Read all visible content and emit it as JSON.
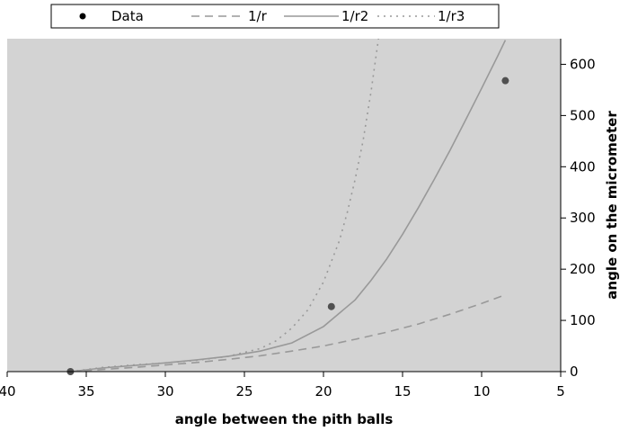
{
  "chart_data": {
    "type": "line",
    "xlabel": "angle between the pith balls",
    "ylabel": "angle on the micrometer",
    "xlim": [
      40,
      5
    ],
    "ylim": [
      0,
      650
    ],
    "x_reversed": true,
    "y_axis_side": "right",
    "x_ticks": [
      40,
      35,
      30,
      25,
      20,
      15,
      10,
      5
    ],
    "y_ticks": [
      0,
      100,
      200,
      300,
      400,
      500,
      600
    ],
    "grid": false,
    "plot_background": "#d3d3d3",
    "legend_position": "top",
    "scatter": {
      "name": "Data",
      "color": "#505050",
      "points": [
        {
          "x": 36,
          "y": 0
        },
        {
          "x": 19.5,
          "y": 127
        },
        {
          "x": 8.5,
          "y": 568
        }
      ]
    },
    "series": [
      {
        "name": "1/r",
        "style": "dashed",
        "color": "#999999",
        "x": [
          36,
          34,
          32,
          30,
          28,
          26,
          24,
          22,
          20,
          18,
          16,
          14,
          12,
          10,
          8.5
        ],
        "y": [
          0,
          4,
          8,
          13,
          18,
          24,
          31,
          40,
          50,
          63,
          77,
          93,
          112,
          133,
          150
        ]
      },
      {
        "name": "1/r2",
        "style": "solid",
        "color": "#999999",
        "x": [
          36,
          34,
          32,
          30,
          28,
          26,
          24,
          22,
          20,
          18,
          17,
          16,
          15,
          14,
          13,
          12,
          11,
          10,
          9,
          8.5
        ],
        "y": [
          0,
          7,
          12,
          17,
          23,
          30,
          40,
          56,
          88,
          140,
          178,
          220,
          268,
          320,
          375,
          432,
          492,
          553,
          615,
          647
        ]
      },
      {
        "name": "1/r3",
        "style": "dotted",
        "color": "#999999",
        "x": [
          36,
          34,
          32,
          30,
          28,
          26,
          24,
          23,
          22,
          21,
          20,
          19,
          18.5,
          18,
          17.5,
          17,
          16.5
        ],
        "y": [
          0,
          8,
          13,
          17,
          22,
          30,
          45,
          60,
          85,
          120,
          175,
          255,
          310,
          375,
          450,
          545,
          655
        ]
      }
    ]
  }
}
